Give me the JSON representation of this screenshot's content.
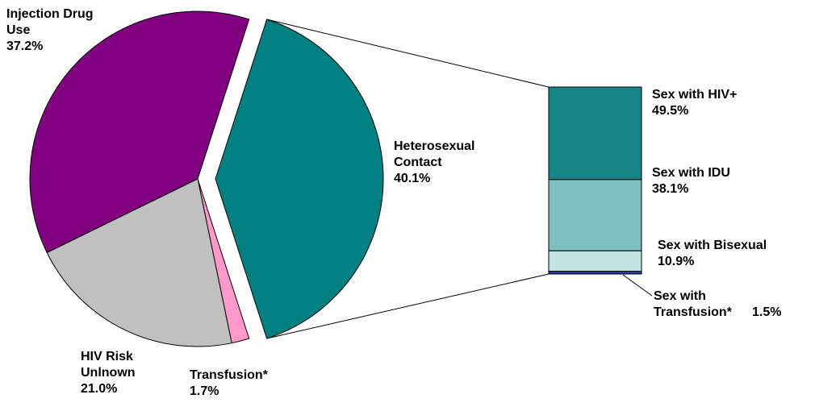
{
  "chart_data": [
    {
      "type": "pie",
      "categories": [
        "Injection Drug Use",
        "Heterosexual Contact",
        "Transfusion*",
        "HIV Risk Unlnown"
      ],
      "values": [
        37.2,
        40.1,
        1.7,
        21.0
      ],
      "value_labels": [
        "37.2%",
        "40.1%",
        "1.7%",
        "21.0%"
      ],
      "colors": [
        "#800080",
        "#008080",
        "#ff99cc",
        "#c0c0c0"
      ]
    },
    {
      "type": "stacked-bar",
      "categories": [
        "Sex with HIV+",
        "Sex with IDU",
        "Sex with Bisexual",
        "Sex with Transfusion*"
      ],
      "values": [
        49.5,
        38.1,
        10.9,
        1.5
      ],
      "value_labels": [
        "49.5%",
        "38.1%",
        "10.9%",
        "1.5%"
      ],
      "colors": [
        "#178585",
        "#80bfbf",
        "#c4e3e3",
        "#1f3fa0"
      ]
    }
  ]
}
